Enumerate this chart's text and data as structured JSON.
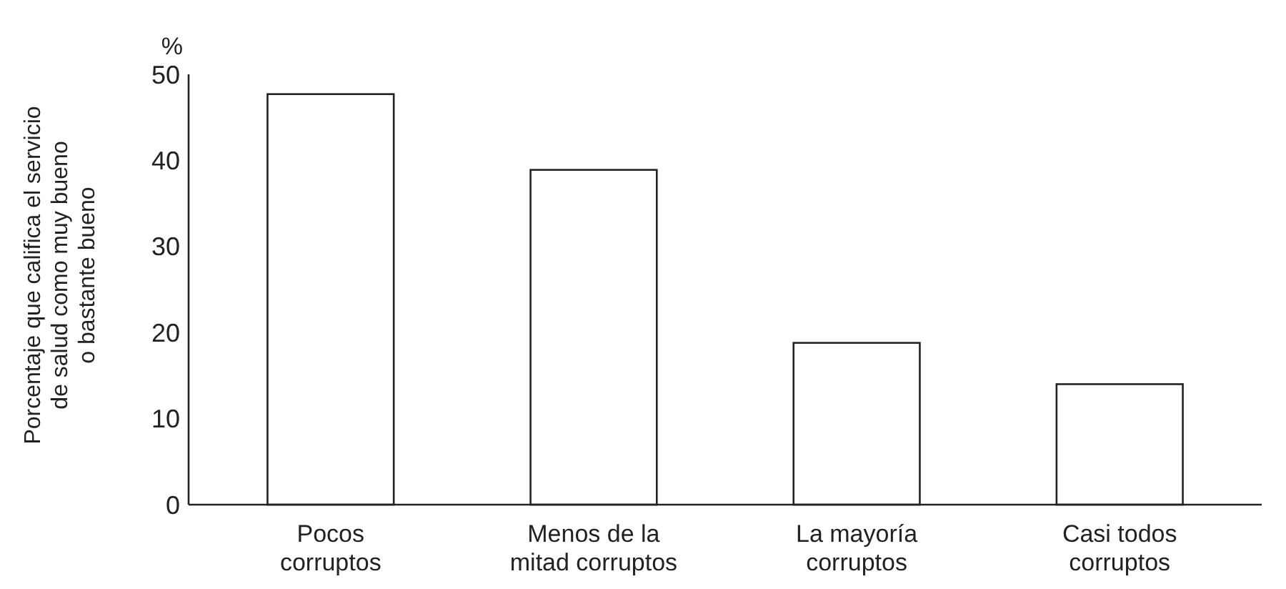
{
  "chart_data": {
    "type": "bar",
    "ylabel": "Porcentaje que califica el servicio\nde salud como muy bueno\no bastante bueno",
    "annotations": [
      "%"
    ],
    "categories": [
      "Pocos\ncorruptos",
      "Menos de la\nmitad corruptos",
      "La mayoría\ncorruptos",
      "Casi todos\ncorruptos"
    ],
    "values": [
      47.7,
      38.9,
      18.8,
      14.0
    ],
    "color": "#ffffff",
    "ylim": [
      0,
      50
    ],
    "yticks": [
      0,
      10,
      20,
      30,
      40,
      50
    ],
    "grid": false
  }
}
